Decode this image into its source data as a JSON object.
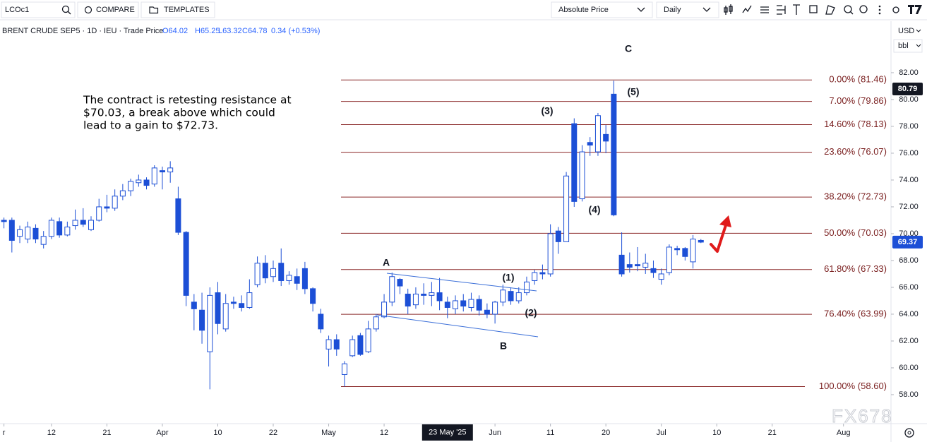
{
  "toolbar": {
    "symbol": "LCOc1",
    "compare": "COMPARE",
    "templates": "TEMPLATES",
    "price_mode": "Absolute Price",
    "interval": "Daily",
    "currency": "USD",
    "unit": "bbl"
  },
  "chart_data": {
    "type": "candlestick",
    "legend": {
      "name": "BRENT CRUDE SEP5 · 1D · IEU · Trade Price",
      "open": "O64.02",
      "high": "H65.25",
      "low": "L63.32",
      "close": "C64.78",
      "change": "0.34 (+0.53%)"
    },
    "annotation": [
      "The contract is retesting resistance at",
      "$70.03, a break above which could",
      "lead to a gain to $72.73."
    ],
    "wave_labels": [
      "A",
      "B",
      "(1)",
      "(2)",
      "(3)",
      "(4)",
      "(5)",
      "C"
    ],
    "up_color": "#ffffff",
    "down_color": "#1c4fd6",
    "edge_color": "#1c4fd6",
    "open": [
      71.0,
      71.0,
      69.8,
      69.6,
      70.4,
      69.2,
      69.8,
      70.9,
      69.9,
      70.6,
      71.0,
      70.3,
      71.0,
      72.0,
      71.9,
      72.8,
      73.2,
      73.8,
      74.0,
      73.7,
      74.7,
      74.6,
      72.6,
      70.1,
      64.9,
      64.3,
      61.2,
      65.6,
      62.9,
      64.9,
      64.8,
      64.5,
      66.2,
      67.8,
      66.8,
      67.8,
      66.5,
      66.8,
      67.4,
      65.9,
      64.0,
      61.4,
      62.1,
      59.5,
      60.9,
      62.4,
      61.2,
      62.9,
      63.8,
      64.9,
      66.6,
      65.5,
      64.7,
      65.5,
      65.4,
      65.6,
      64.9,
      64.4,
      65.0,
      64.5,
      65.1,
      64.3,
      64.0,
      64.9,
      65.7,
      65.0,
      65.6,
      66.5,
      67.1,
      67.0,
      70.2,
      69.4,
      78.2,
      72.6,
      76.8,
      76.1,
      77.4,
      80.4,
      68.4,
      67.7,
      67.7,
      67.5,
      67.4,
      66.6,
      67.1,
      68.9,
      68.9,
      67.9,
      69.5
    ],
    "high": [
      71.2,
      71.2,
      70.6,
      70.9,
      70.7,
      70.2,
      71.2,
      71.2,
      70.9,
      71.8,
      71.9,
      71.3,
      72.6,
      72.9,
      73.3,
      73.7,
      74.1,
      74.4,
      74.2,
      75.1,
      75.0,
      75.4,
      73.5,
      70.2,
      65.5,
      65.6,
      66.0,
      66.4,
      65.5,
      65.3,
      65.4,
      66.6,
      68.3,
      68.4,
      68.0,
      68.9,
      67.2,
      67.4,
      67.9,
      66.0,
      64.4,
      62.4,
      62.5,
      60.5,
      62.4,
      62.6,
      63.5,
      64.0,
      65.5,
      67.1,
      66.7,
      65.9,
      66.0,
      66.3,
      66.4,
      66.7,
      65.3,
      65.4,
      65.5,
      65.6,
      65.4,
      64.8,
      65.0,
      66.2,
      66.0,
      66.0,
      66.8,
      67.3,
      67.7,
      70.7,
      70.5,
      74.6,
      78.6,
      76.6,
      77.2,
      79.0,
      78.1,
      81.4,
      70.1,
      68.6,
      69.0,
      68.5,
      68.0,
      67.4,
      69.2,
      69.1,
      69.0,
      69.9,
      69.6
    ],
    "low": [
      70.4,
      68.6,
      69.3,
      69.3,
      69.3,
      68.9,
      69.6,
      69.7,
      69.8,
      70.3,
      70.5,
      70.2,
      70.9,
      71.6,
      71.7,
      72.5,
      72.8,
      73.5,
      73.3,
      73.5,
      73.3,
      73.8,
      69.9,
      64.6,
      62.8,
      61.8,
      58.4,
      62.5,
      62.7,
      64.4,
      64.2,
      64.4,
      66.0,
      66.3,
      66.4,
      66.1,
      66.2,
      65.8,
      65.5,
      64.2,
      62.6,
      60.1,
      60.9,
      58.6,
      60.8,
      60.9,
      61.1,
      62.7,
      63.7,
      64.6,
      65.5,
      64.0,
      64.4,
      64.7,
      64.6,
      64.3,
      63.7,
      64.0,
      64.2,
      64.2,
      63.9,
      63.7,
      63.3,
      64.6,
      64.7,
      64.8,
      65.4,
      66.2,
      66.6,
      66.8,
      68.5,
      69.4,
      72.0,
      72.4,
      75.8,
      75.8,
      76.0,
      71.3,
      66.8,
      67.1,
      67.2,
      67.0,
      66.7,
      66.2,
      66.9,
      68.4,
      68.0,
      67.4,
      69.3
    ],
    "close": [
      70.9,
      69.5,
      70.3,
      70.5,
      69.6,
      69.8,
      71.0,
      69.9,
      70.5,
      71.0,
      70.7,
      71.0,
      72.0,
      71.9,
      72.8,
      73.2,
      73.9,
      74.0,
      73.6,
      74.9,
      74.6,
      74.9,
      70.1,
      65.4,
      64.4,
      62.8,
      65.4,
      63.3,
      64.8,
      64.8,
      64.5,
      65.6,
      67.8,
      66.7,
      67.4,
      66.5,
      66.9,
      66.3,
      65.9,
      64.8,
      62.9,
      62.1,
      61.4,
      60.3,
      62.1,
      61.0,
      62.9,
      63.8,
      64.9,
      66.8,
      66.1,
      64.6,
      65.5,
      65.4,
      65.6,
      65.0,
      64.5,
      65.0,
      64.6,
      65.1,
      64.3,
      64.0,
      64.9,
      65.8,
      65.0,
      65.6,
      66.4,
      67.1,
      67.0,
      70.0,
      69.4,
      74.3,
      72.4,
      76.1,
      76.6,
      78.8,
      76.9,
      71.4,
      67.0,
      67.5,
      67.6,
      67.8,
      67.1,
      67.0,
      69.0,
      68.8,
      68.3,
      69.6,
      69.37
    ],
    "fib_color": "#8b2a2a",
    "fib_levels": [
      {
        "value": 81.46,
        "label": "0.00% (81.46)"
      },
      {
        "value": 79.86,
        "label": "7.00% (79.86)"
      },
      {
        "value": 78.13,
        "label": "14.60% (78.13)"
      },
      {
        "value": 76.07,
        "label": "23.60% (76.07)"
      },
      {
        "value": 72.73,
        "label": "38.20% (72.73)"
      },
      {
        "value": 70.03,
        "label": "50.00% (70.03)"
      },
      {
        "value": 67.33,
        "label": "61.80% (67.33)"
      },
      {
        "value": 63.99,
        "label": "76.40% (63.99)"
      },
      {
        "value": 58.6,
        "label": "100.00% (58.60)"
      }
    ],
    "price_badges": [
      {
        "value": 80.79,
        "color": "#131722"
      },
      {
        "value": 69.37,
        "color": "#1c4fd6"
      }
    ],
    "xlim": [
      -0.5,
      112
    ],
    "xticks": [
      {
        "value": 0,
        "label": "r"
      },
      {
        "value": 6,
        "label": "12"
      },
      {
        "value": 13,
        "label": "21"
      },
      {
        "value": 20,
        "label": "Apr"
      },
      {
        "value": 27,
        "label": "10"
      },
      {
        "value": 34,
        "label": "22"
      },
      {
        "value": 41,
        "label": "May"
      },
      {
        "value": 48,
        "label": "12"
      },
      {
        "value": 62,
        "label": "Jun"
      },
      {
        "value": 69,
        "label": "11"
      },
      {
        "value": 76,
        "label": "20"
      },
      {
        "value": 83,
        "label": "Jul"
      },
      {
        "value": 90,
        "label": "10"
      },
      {
        "value": 97,
        "label": "21"
      },
      {
        "value": 106,
        "label": "Aug"
      }
    ],
    "crosshair_x": {
      "value": 56,
      "label": "23 May '25"
    },
    "ylim": [
      55.84,
      85.84
    ],
    "yticks": [
      {
        "value": 58,
        "label": "58.00"
      },
      {
        "value": 60,
        "label": "60.00"
      },
      {
        "value": 62,
        "label": "62.00"
      },
      {
        "value": 64,
        "label": "64.00"
      },
      {
        "value": 66,
        "label": "66.00"
      },
      {
        "value": 68,
        "label": "68.00"
      },
      {
        "value": 70,
        "label": "70.00"
      },
      {
        "value": 72,
        "label": "72.00"
      },
      {
        "value": 74,
        "label": "74.00"
      },
      {
        "value": 76,
        "label": "76.00"
      },
      {
        "value": 78,
        "label": "78.00"
      },
      {
        "value": 80,
        "label": "80.00"
      },
      {
        "value": 82,
        "label": "82.00"
      }
    ],
    "watermark": "FX678"
  }
}
